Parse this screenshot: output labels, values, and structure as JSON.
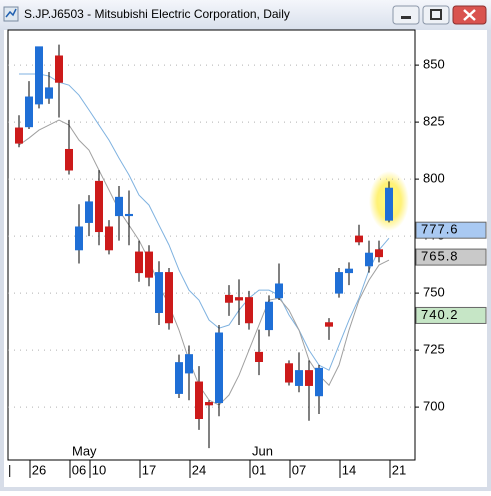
{
  "chart_data": {
    "type": "candlestick",
    "title": "S.JP.J6503 - Mitsubishi Electric Corporation, Daily",
    "categories": [
      null,
      null,
      "26",
      null,
      null,
      null,
      "06",
      null,
      "10",
      null,
      null,
      null,
      null,
      "17",
      null,
      null,
      null,
      null,
      "24",
      null,
      null,
      null,
      null,
      null,
      "01",
      null,
      null,
      null,
      "07",
      null,
      null,
      null,
      null,
      "14",
      null,
      null,
      null,
      null,
      "21"
    ],
    "months": [
      null,
      null,
      null,
      null,
      null,
      null,
      "May",
      null,
      null,
      null,
      null,
      null,
      null,
      null,
      null,
      null,
      null,
      null,
      null,
      null,
      null,
      null,
      null,
      null,
      "Jun",
      null,
      null,
      null,
      null,
      null,
      null,
      null,
      null,
      null,
      null,
      null,
      null,
      null,
      null
    ],
    "up_color": "#1f6fd6",
    "down_color": "#cc1a1a",
    "open": [
      822.4,
      823,
      833,
      835.5,
      854,
      813,
      769,
      781,
      799,
      779,
      784,
      784,
      768,
      768,
      741.5,
      759,
      706,
      715,
      711,
      702,
      702,
      749,
      748,
      748,
      724,
      734,
      748,
      719,
      709.5,
      716,
      705,
      737,
      750,
      759,
      775,
      762,
      769,
      782,
      null
    ],
    "high": [
      828,
      843,
      858,
      847,
      859,
      826,
      789,
      793,
      804,
      782,
      797,
      795,
      773,
      771,
      764,
      761,
      723,
      727,
      718,
      703,
      736,
      753.5,
      756,
      751,
      734,
      749,
      763,
      720.5,
      724,
      720.5,
      718.5,
      739,
      761,
      763.5,
      780,
      773,
      773,
      799,
      null
    ],
    "low": [
      814,
      822,
      831,
      833,
      827,
      802,
      763,
      775,
      771,
      767,
      773,
      771,
      755,
      753,
      736,
      734,
      704,
      703,
      690,
      682,
      696,
      740,
      736,
      734,
      714,
      731,
      747,
      709.5,
      706.5,
      694,
      697,
      729.5,
      748,
      753.5,
      771,
      759,
      763.5,
      781,
      null
    ],
    "close": [
      815.8,
      836,
      858,
      840,
      842.5,
      804,
      779,
      790,
      777,
      769,
      792,
      784.5,
      759,
      757,
      759,
      737,
      719.5,
      723,
      695,
      701,
      732.5,
      746,
      747,
      737,
      720,
      746,
      754,
      711,
      716,
      709.5,
      717,
      735.5,
      759,
      760.5,
      772.5,
      767.5,
      766,
      796,
      null
    ],
    "series": [
      {
        "color": "#7fb2e0",
        "values": [
          846.1,
          846.1,
          846.1,
          845.2,
          842.5,
          841.2,
          836.8,
          830.3,
          823.7,
          817.1,
          809.2,
          801.8,
          793,
          788.6,
          779.8,
          771.1,
          760.1,
          751.3,
          746.9,
          738.2,
          734.6,
          736,
          742.5,
          747.8,
          751.3,
          751.3,
          749.1,
          740.4,
          733.8,
          725,
          718.4,
          716.2,
          727.2,
          738.2,
          747.8,
          760.1,
          768.9,
          774.1,
          null
        ]
      },
      {
        "color": "#a0a0a0",
        "values": [
          814.9,
          818,
          821.5,
          823.7,
          825.9,
          823.7,
          817.1,
          812.7,
          803.9,
          795.2,
          786.4,
          779.8,
          773.2,
          764.5,
          753.5,
          744.7,
          733.8,
          720.6,
          709.6,
          703.1,
          700.9,
          705.3,
          714,
          725,
          736,
          746.9,
          747.8,
          742.5,
          733.8,
          720.6,
          714,
          709.6,
          718.4,
          733.8,
          746.9,
          755.7,
          762.3,
          764.5,
          null
        ]
      }
    ],
    "price_labels": [
      {
        "value": 777.6,
        "color": "#a9c9f2"
      },
      {
        "value": 765.8,
        "color": "#c9c9c9"
      },
      {
        "value": 740.2,
        "color": "#c6e6c6"
      }
    ],
    "ylim": [
      676.8,
      865.4
    ],
    "yticks": [
      700,
      725,
      750,
      775,
      800,
      825,
      850
    ],
    "grid": true
  }
}
